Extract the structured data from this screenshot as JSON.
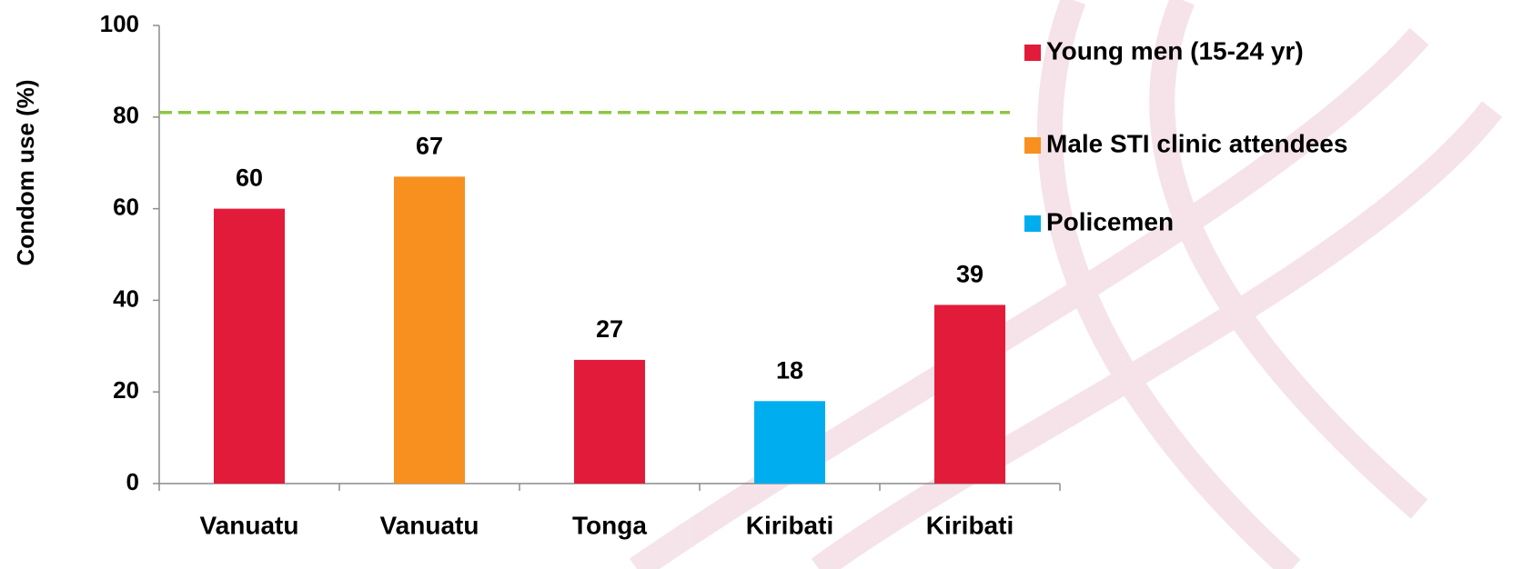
{
  "chart_data": {
    "type": "bar",
    "y_label": "Condom use (%)",
    "categories": [
      "Vanuatu",
      "Vanuatu",
      "Tonga",
      "Kiribati",
      "Kiribati"
    ],
    "series": [
      {
        "name": "Young men (15-24 yr)",
        "color": "#e31b3a",
        "values": [
          60,
          null,
          27,
          null,
          39
        ]
      },
      {
        "name": "Male STI clinic attendees",
        "color": "#f7901e",
        "values": [
          null,
          67,
          null,
          null,
          null
        ]
      },
      {
        "name": "Policemen",
        "color": "#00aeef",
        "values": [
          null,
          null,
          null,
          18,
          null
        ]
      }
    ],
    "reference_line": {
      "value": 81,
      "color": "#8dc63f"
    },
    "ylim": [
      0,
      100
    ],
    "yticks": [
      0,
      20,
      40,
      60,
      80,
      100
    ]
  }
}
